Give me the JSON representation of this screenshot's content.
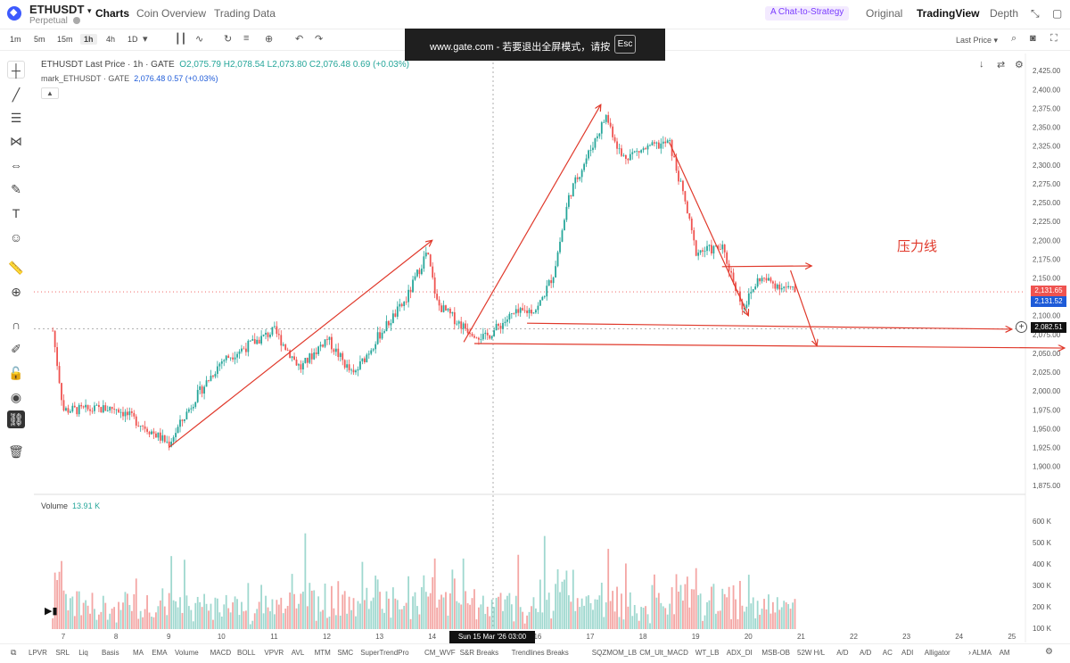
{
  "header": {
    "symbol": "ETHUSDT",
    "symbol_caret": "▾",
    "subtitle": "Perpetual",
    "nav": [
      "Charts",
      "Coin Overview",
      "Trading Data"
    ],
    "ai_button": "A Chat-to-Strategy",
    "views": [
      "Original",
      "TradingView",
      "Depth"
    ]
  },
  "toolbar": {
    "timeframes": [
      "1m",
      "5m",
      "15m",
      "1h",
      "4h",
      "1D"
    ],
    "active_timeframe": "1h",
    "price_type": "Last Price ▾"
  },
  "overlay": {
    "text": "www.gate.com - 若要退出全屏模式，请按",
    "key": "Esc"
  },
  "legend": {
    "title": "ETHUSDT Last Price · 1h · GATE",
    "ohlc": "O2,075.79 H2,078.54 L2,073.80 C2,076.48 0.69 (+0.03%)",
    "mark_label": "mark_ETHUSDT · GATE",
    "mark_values": "2,076.48 0.57 (+0.03%)",
    "volume_label": "Volume",
    "volume_value": "13.91 K"
  },
  "annotation": {
    "text": "压力线"
  },
  "price_tags": {
    "last": "2,131.65",
    "mark": "2,131.52",
    "cross": "2,082.51"
  },
  "crosshair_time": "Sun 15 Mar '26   03:00",
  "colors": {
    "up": "#26a69a",
    "down": "#ef5350",
    "drawing": "#e0392b",
    "last_tag": "#ef5350",
    "mark_tag": "#1e5bd8"
  },
  "chart_data": {
    "type": "candlestick",
    "price_axis_ticks": [
      "2,425.00",
      "2,400.00",
      "2,375.00",
      "2,350.00",
      "2,325.00",
      "2,300.00",
      "2,275.00",
      "2,250.00",
      "2,225.00",
      "2,200.00",
      "2,175.00",
      "2,150.00",
      "2,125.00",
      "2,100.00",
      "2,075.00",
      "2,050.00",
      "2,025.00",
      "2,000.00",
      "1,975.00",
      "1,950.00",
      "1,925.00",
      "1,900.00",
      "1,875.00"
    ],
    "ylim": [
      1870,
      2430
    ],
    "volume_axis_ticks": [
      "600 K",
      "500 K",
      "400 K",
      "300 K",
      "200 K",
      "100 K"
    ],
    "x_axis_ticks": [
      "7",
      "8",
      "9",
      "10",
      "11",
      "12",
      "13",
      "14",
      "15",
      "16",
      "17",
      "18",
      "19",
      "20",
      "21",
      "22",
      "23",
      "24",
      "25"
    ],
    "price_path": [
      {
        "day": 6.8,
        "close": 2080
      },
      {
        "day": 7.0,
        "close": 1975
      },
      {
        "day": 7.5,
        "close": 1975
      },
      {
        "day": 8.0,
        "close": 1978
      },
      {
        "day": 8.5,
        "close": 1955
      },
      {
        "day": 9.0,
        "close": 1930
      },
      {
        "day": 9.5,
        "close": 1990
      },
      {
        "day": 10.0,
        "close": 2040
      },
      {
        "day": 10.5,
        "close": 2060
      },
      {
        "day": 11.0,
        "close": 2080
      },
      {
        "day": 11.5,
        "close": 2030
      },
      {
        "day": 12.0,
        "close": 2070
      },
      {
        "day": 12.5,
        "close": 2020
      },
      {
        "day": 13.0,
        "close": 2075
      },
      {
        "day": 13.5,
        "close": 2120
      },
      {
        "day": 13.9,
        "close": 2185
      },
      {
        "day": 14.1,
        "close": 2115
      },
      {
        "day": 14.6,
        "close": 2085
      },
      {
        "day": 15.0,
        "close": 2070
      },
      {
        "day": 15.5,
        "close": 2100
      },
      {
        "day": 16.0,
        "close": 2110
      },
      {
        "day": 16.3,
        "close": 2155
      },
      {
        "day": 16.6,
        "close": 2260
      },
      {
        "day": 17.0,
        "close": 2320
      },
      {
        "day": 17.3,
        "close": 2365
      },
      {
        "day": 17.6,
        "close": 2310
      },
      {
        "day": 18.0,
        "close": 2320
      },
      {
        "day": 18.5,
        "close": 2330
      },
      {
        "day": 18.8,
        "close": 2250
      },
      {
        "day": 19.0,
        "close": 2185
      },
      {
        "day": 19.5,
        "close": 2190
      },
      {
        "day": 19.9,
        "close": 2110
      },
      {
        "day": 20.2,
        "close": 2150
      },
      {
        "day": 20.6,
        "close": 2140
      },
      {
        "day": 20.9,
        "close": 2131
      }
    ],
    "drawings": [
      {
        "kind": "trend-arrow",
        "from": {
          "day": 9.0,
          "price": 1925
        },
        "to": {
          "day": 14.0,
          "price": 2200
        }
      },
      {
        "kind": "trend-arrow",
        "from": {
          "day": 14.6,
          "price": 2065
        },
        "to": {
          "day": 17.2,
          "price": 2380
        }
      },
      {
        "kind": "trend-arrow",
        "from": {
          "day": 18.5,
          "price": 2330
        },
        "to": {
          "day": 20.0,
          "price": 2100
        }
      },
      {
        "kind": "resistance-arrow",
        "from": {
          "day": 19.5,
          "price": 2165
        },
        "to": {
          "day": 21.2,
          "price": 2166
        }
      },
      {
        "kind": "arrow",
        "from": {
          "day": 20.8,
          "price": 2160
        },
        "to": {
          "day": 21.3,
          "price": 2060
        }
      },
      {
        "kind": "horizontal-arrow",
        "from": {
          "day": 15.8,
          "price": 2090
        },
        "to": {
          "day": 25.0,
          "price": 2082
        }
      },
      {
        "kind": "horizontal-arrow",
        "from": {
          "day": 14.8,
          "price": 2063
        },
        "to": {
          "day": 26.0,
          "price": 2057
        }
      }
    ]
  },
  "bottom_indicators": [
    "LPVR",
    "SRL",
    "Liq",
    "Basis",
    "MA",
    "EMA",
    "Volume",
    "MACD",
    "BOLL",
    "VPVR",
    "AVL",
    "MTM",
    "SMC",
    "SuperTrendPro",
    "CM_WVF",
    "S&R Breaks",
    "Trendlines Breaks",
    "SQZMOM_LB",
    "CM_Ult_MACD",
    "WT_LB",
    "ADX_DI",
    "MSB-OB",
    "52W H/L",
    "A/D",
    "A/D",
    "AC",
    "ADI",
    "Alligator",
    "ALMA",
    "AM"
  ]
}
